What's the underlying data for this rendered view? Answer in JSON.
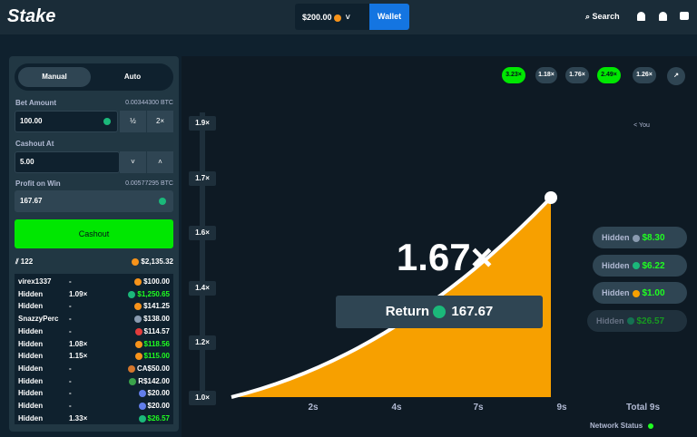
{
  "header": {
    "logo": "Stake",
    "balance": "$200.00",
    "wallet": "Wallet",
    "search": "Search"
  },
  "controls": {
    "tabs": [
      "Manual",
      "Auto"
    ],
    "bet_amount": {
      "label": "Bet Amount",
      "btc": "0.00344300 BTC",
      "value": "100.00",
      "half": "½",
      "double": "2×"
    },
    "cashout_at": {
      "label": "Cashout At",
      "value": "5.00"
    },
    "profit_on_win": {
      "label": "Profit on Win",
      "btc": "0.00577295 BTC",
      "value": "167.67"
    },
    "button": "Cashout"
  },
  "bets": {
    "players": "122",
    "total": "$2,135.32",
    "rows": [
      {
        "name": "virex1337",
        "multiplier": "-",
        "amount": "$100.00"
      },
      {
        "name": "Hidden",
        "multiplier": "1.09×",
        "amount": "$1,250.65"
      },
      {
        "name": "Hidden",
        "multiplier": "-",
        "amount": "$141.25"
      },
      {
        "name": "SnazzyPerc",
        "multiplier": "-",
        "amount": "$138.00"
      },
      {
        "name": "Hidden",
        "multiplier": "-",
        "amount": "$114.57"
      },
      {
        "name": "Hidden",
        "multiplier": "1.08×",
        "amount": "$118.56"
      },
      {
        "name": "Hidden",
        "multiplier": "1.15×",
        "amount": "$115.00"
      },
      {
        "name": "Hidden",
        "multiplier": "-",
        "amount": "CA$50.00"
      },
      {
        "name": "Hidden",
        "multiplier": "-",
        "amount": "R$142.00"
      },
      {
        "name": "Hidden",
        "multiplier": "-",
        "amount": "$20.00"
      },
      {
        "name": "Hidden",
        "multiplier": "-",
        "amount": "$20.00"
      },
      {
        "name": "Hidden",
        "multiplier": "1.33×",
        "amount": "$26.57"
      }
    ]
  },
  "game": {
    "history": [
      "3.23×",
      "1.18×",
      "1.76×",
      "2.49×",
      "1.26×"
    ],
    "you": "< You",
    "y_labels": [
      "1.9×",
      "1.7×",
      "1.6×",
      "1.4×",
      "1.2×",
      "1.0×"
    ],
    "x_labels": [
      "2s",
      "4s",
      "7s",
      "9s"
    ],
    "total": "Total 9s",
    "multiplier": "1.67×",
    "return_label": "Return",
    "return_value": "167.67",
    "cashouts": [
      {
        "name": "Hidden",
        "amount": "$8.30"
      },
      {
        "name": "Hidden",
        "amount": "$6.22"
      },
      {
        "name": "Hidden",
        "amount": "$1.00"
      },
      {
        "name": "Hidden",
        "amount": "$26.57"
      }
    ]
  },
  "footer": {
    "network_status": "Network Status"
  }
}
